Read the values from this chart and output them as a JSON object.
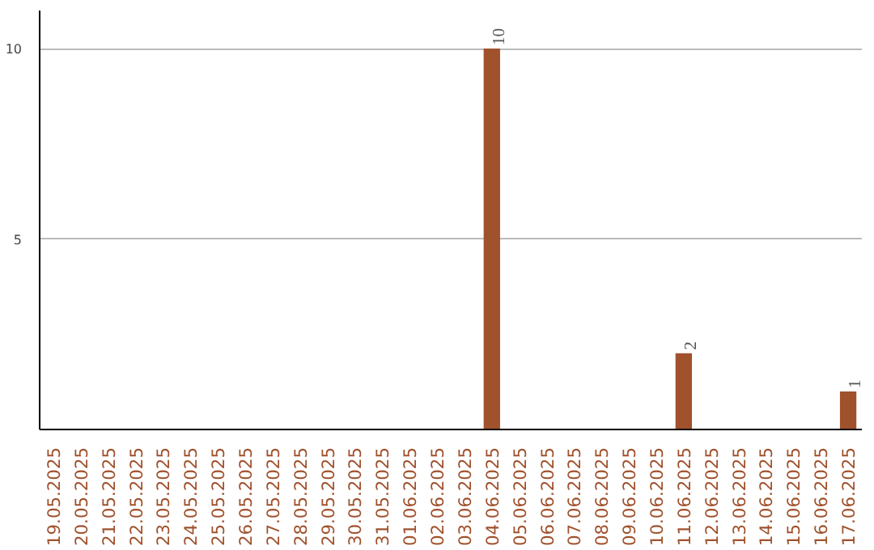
{
  "chart_data": {
    "type": "bar",
    "categories": [
      "19.05.2025",
      "20.05.2025",
      "21.05.2025",
      "22.05.2025",
      "23.05.2025",
      "24.05.2025",
      "25.05.2025",
      "26.05.2025",
      "27.05.2025",
      "28.05.2025",
      "29.05.2025",
      "30.05.2025",
      "31.05.2025",
      "01.06.2025",
      "02.06.2025",
      "03.06.2025",
      "04.06.2025",
      "05.06.2025",
      "06.06.2025",
      "07.06.2025",
      "08.06.2025",
      "09.06.2025",
      "10.06.2025",
      "11.06.2025",
      "12.06.2025",
      "13.06.2025",
      "14.06.2025",
      "15.06.2025",
      "16.06.2025",
      "17.06.2025"
    ],
    "values": [
      0,
      0,
      0,
      0,
      0,
      0,
      0,
      0,
      0,
      0,
      0,
      0,
      0,
      0,
      0,
      0,
      10,
      0,
      0,
      0,
      0,
      0,
      0,
      2,
      0,
      0,
      0,
      0,
      0,
      1
    ],
    "value_labels": [
      null,
      null,
      null,
      null,
      null,
      null,
      null,
      null,
      null,
      null,
      null,
      null,
      null,
      null,
      null,
      null,
      "10",
      null,
      null,
      null,
      null,
      null,
      null,
      "2",
      null,
      null,
      null,
      null,
      null,
      "1"
    ],
    "color": "#a0522d",
    "ylim": [
      0,
      11
    ],
    "yticks": [
      5,
      10
    ],
    "grid": "y"
  }
}
